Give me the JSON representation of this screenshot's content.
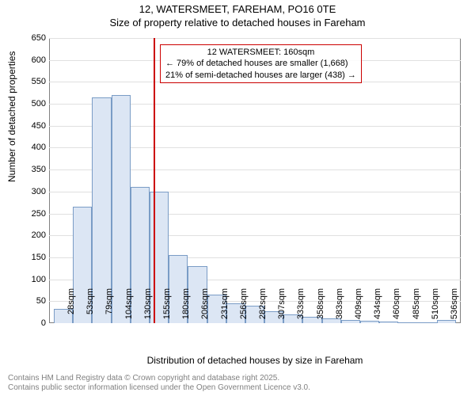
{
  "title_line1": "12, WATERSMEET, FAREHAM, PO16 0TE",
  "title_line2": "Size of property relative to detached houses in Fareham",
  "ylabel": "Number of detached properties",
  "xlabel": "Distribution of detached houses by size in Fareham",
  "footer_line1": "Contains HM Land Registry data © Crown copyright and database right 2025.",
  "footer_line2": "Contains public sector information licensed under the Open Government Licence v3.0.",
  "chart": {
    "type": "histogram",
    "ylim": [
      0,
      650
    ],
    "ytick_step": 50,
    "categories": [
      "28sqm",
      "53sqm",
      "79sqm",
      "104sqm",
      "130sqm",
      "155sqm",
      "180sqm",
      "206sqm",
      "231sqm",
      "256sqm",
      "282sqm",
      "307sqm",
      "333sqm",
      "358sqm",
      "383sqm",
      "409sqm",
      "434sqm",
      "460sqm",
      "485sqm",
      "510sqm",
      "536sqm"
    ],
    "values": [
      32,
      265,
      515,
      520,
      310,
      300,
      155,
      130,
      65,
      45,
      40,
      28,
      20,
      15,
      10,
      8,
      6,
      4,
      2,
      2,
      8
    ],
    "bar_fill": "#dce6f4",
    "bar_stroke": "#7a9cc6",
    "background_color": "#ffffff",
    "grid_color": "#e0e0e0",
    "axis_color": "#808080",
    "label_fontsize": 12,
    "tick_fontsize": 11,
    "marker": {
      "x_index_after": 5,
      "color": "#cc0000",
      "title": "12 WATERSMEET: 160sqm",
      "line1": "← 79% of detached houses are smaller (1,668)",
      "line2": "21% of semi-detached houses are larger (438) →",
      "box_border": "#cc0000"
    }
  }
}
